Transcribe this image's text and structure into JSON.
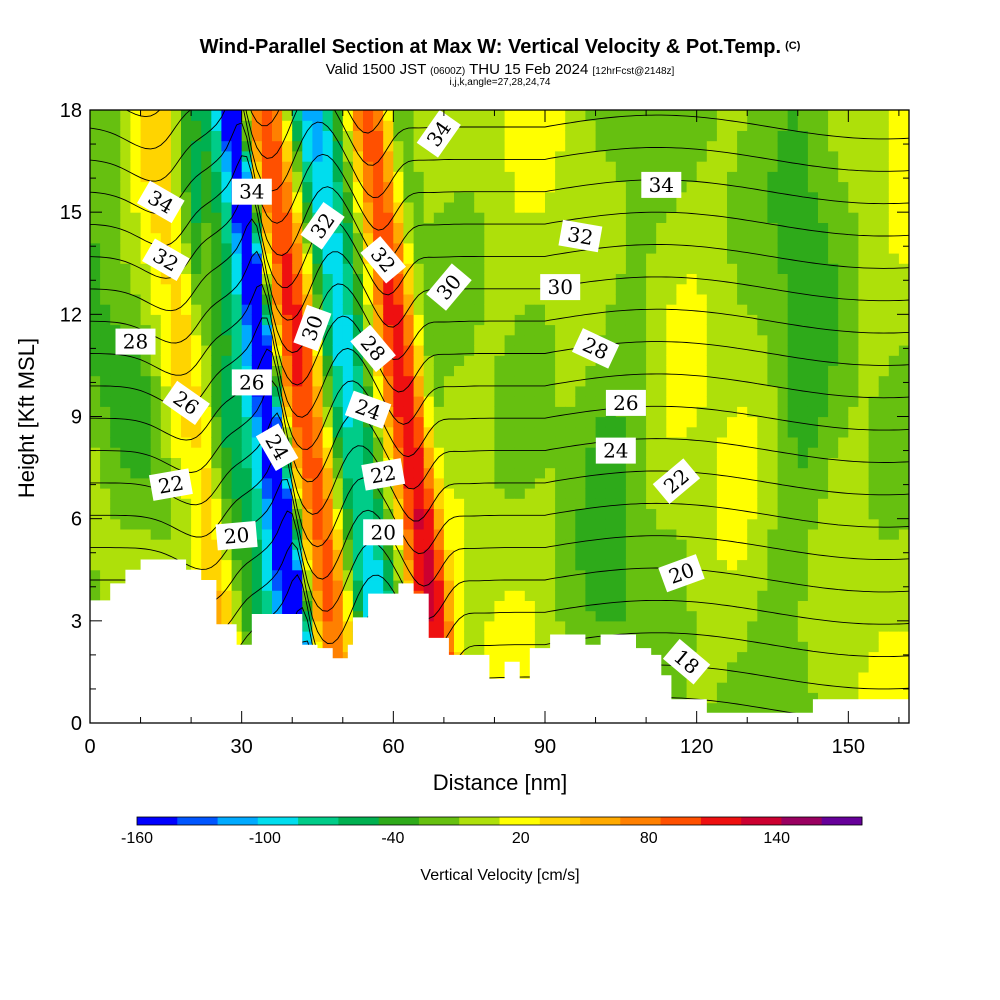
{
  "header": {
    "title": "Wind-Parallel Section at Max W: Vertical Velocity & Pot.Temp.",
    "copyright": "(C)",
    "valid_prefix": "Valid 1500 JST",
    "valid_zulu": "(0600Z)",
    "valid_date": "THU 15 Feb 2024",
    "forecast": "[12hrFcst@2148z]",
    "ijk": "i,j,k,angle=27,28,24,74"
  },
  "chart_data": {
    "type": "heatmap",
    "xlabel": "Distance [nm]",
    "ylabel": "Height [Kft MSL]",
    "xlim": [
      0,
      162
    ],
    "ylim": [
      0,
      18
    ],
    "x_ticks": [
      "0",
      "30",
      "60",
      "90",
      "120",
      "150"
    ],
    "y_ticks": [
      "0",
      "3",
      "6",
      "9",
      "12",
      "15",
      "18"
    ],
    "x_tick_values": [
      0,
      30,
      60,
      90,
      120,
      150
    ],
    "y_tick_values": [
      0,
      3,
      6,
      9,
      12,
      15,
      18
    ],
    "terrain_profile": [
      [
        0,
        3.6
      ],
      [
        4,
        3.6
      ],
      [
        4,
        4.1
      ],
      [
        7,
        4.1
      ],
      [
        7,
        4.5
      ],
      [
        10,
        4.5
      ],
      [
        10,
        4.8
      ],
      [
        19,
        4.8
      ],
      [
        19,
        4.5
      ],
      [
        22,
        4.5
      ],
      [
        22,
        4.2
      ],
      [
        25,
        4.2
      ],
      [
        25,
        2.9
      ],
      [
        29,
        2.9
      ],
      [
        29,
        2.3
      ],
      [
        32,
        2.3
      ],
      [
        32,
        3.2
      ],
      [
        42,
        3.2
      ],
      [
        42,
        2.3
      ],
      [
        45,
        2.3
      ],
      [
        45,
        2.2
      ],
      [
        48,
        2.2
      ],
      [
        48,
        1.9
      ],
      [
        51,
        1.9
      ],
      [
        51,
        2.3
      ],
      [
        52,
        2.3
      ],
      [
        52,
        3.1
      ],
      [
        55,
        3.1
      ],
      [
        55,
        3.8
      ],
      [
        61,
        3.8
      ],
      [
        61,
        4.1
      ],
      [
        64,
        4.1
      ],
      [
        64,
        3.8
      ],
      [
        67,
        3.8
      ],
      [
        67,
        2.5
      ],
      [
        71,
        2.5
      ],
      [
        71,
        2.0
      ],
      [
        79,
        2.0
      ],
      [
        79,
        1.3
      ],
      [
        82,
        1.3
      ],
      [
        82,
        1.8
      ],
      [
        85,
        1.8
      ],
      [
        85,
        1.3
      ],
      [
        87,
        1.3
      ],
      [
        87,
        2.2
      ],
      [
        91,
        2.2
      ],
      [
        91,
        2.6
      ],
      [
        98,
        2.6
      ],
      [
        98,
        2.3
      ],
      [
        101,
        2.3
      ],
      [
        101,
        2.6
      ],
      [
        108,
        2.6
      ],
      [
        108,
        2.2
      ],
      [
        111,
        2.2
      ],
      [
        111,
        2.0
      ],
      [
        113,
        2.0
      ],
      [
        113,
        1.4
      ],
      [
        115,
        1.4
      ],
      [
        115,
        0.7
      ],
      [
        122,
        0.7
      ],
      [
        122,
        0.3
      ],
      [
        126,
        0.3
      ],
      [
        126,
        0.3
      ],
      [
        143,
        0.3
      ],
      [
        143,
        0.7
      ],
      [
        162,
        0.7
      ]
    ],
    "velocity_bands": [
      {
        "x": 24,
        "w": 12,
        "value": 60
      },
      {
        "x": 30,
        "w": 6,
        "value": -40
      },
      {
        "x": 38,
        "w": 10,
        "value": -110
      },
      {
        "x": 40,
        "w": 4,
        "value": -150
      },
      {
        "x": 47,
        "w": 11,
        "value": 110
      },
      {
        "x": 53,
        "w": 7,
        "value": -40
      },
      {
        "x": 57,
        "w": 11,
        "value": -100
      },
      {
        "x": 60,
        "w": 5,
        "value": 10
      },
      {
        "x": 67,
        "w": 10,
        "value": 125
      },
      {
        "x": 72,
        "w": 6,
        "value": -35
      },
      {
        "x": 104,
        "w": 16,
        "value": -25
      },
      {
        "x": 140,
        "w": 14,
        "value": -30
      }
    ],
    "isentropes": {
      "levels": [
        18,
        20,
        22,
        24,
        26,
        28,
        30,
        32,
        34
      ],
      "labels": [
        {
          "text": "34",
          "x": 14,
          "y": 15.3,
          "angle": 30
        },
        {
          "text": "34",
          "x": 32,
          "y": 15.6,
          "angle": 0
        },
        {
          "text": "34",
          "x": 69,
          "y": 17.3,
          "angle": -55
        },
        {
          "text": "34",
          "x": 113,
          "y": 15.8,
          "angle": 0
        },
        {
          "text": "32",
          "x": 15,
          "y": 13.6,
          "angle": 30
        },
        {
          "text": "32",
          "x": 46,
          "y": 14.6,
          "angle": -55
        },
        {
          "text": "32",
          "x": 58,
          "y": 13.6,
          "angle": 50
        },
        {
          "text": "32",
          "x": 97,
          "y": 14.3,
          "angle": 10
        },
        {
          "text": "30",
          "x": 44,
          "y": 11.6,
          "angle": -70
        },
        {
          "text": "30",
          "x": 71,
          "y": 12.8,
          "angle": -50
        },
        {
          "text": "30",
          "x": 93,
          "y": 12.8,
          "angle": 0
        },
        {
          "text": "28",
          "x": 9,
          "y": 11.2,
          "angle": 0
        },
        {
          "text": "28",
          "x": 56,
          "y": 11.0,
          "angle": 50
        },
        {
          "text": "28",
          "x": 100,
          "y": 11.0,
          "angle": 25
        },
        {
          "text": "26",
          "x": 19,
          "y": 9.4,
          "angle": 35
        },
        {
          "text": "26",
          "x": 32,
          "y": 10.0,
          "angle": 0
        },
        {
          "text": "26",
          "x": 106,
          "y": 9.4,
          "angle": 0
        },
        {
          "text": "24",
          "x": 37,
          "y": 8.1,
          "angle": 60
        },
        {
          "text": "24",
          "x": 55,
          "y": 9.2,
          "angle": 20
        },
        {
          "text": "24",
          "x": 104,
          "y": 8.0,
          "angle": 0
        },
        {
          "text": "22",
          "x": 16,
          "y": 7.0,
          "angle": -10
        },
        {
          "text": "22",
          "x": 58,
          "y": 7.3,
          "angle": -10
        },
        {
          "text": "22",
          "x": 116,
          "y": 7.1,
          "angle": -40
        },
        {
          "text": "20",
          "x": 29,
          "y": 5.5,
          "angle": -5
        },
        {
          "text": "20",
          "x": 58,
          "y": 5.6,
          "angle": 0
        },
        {
          "text": "20",
          "x": 117,
          "y": 4.4,
          "angle": -20
        },
        {
          "text": "18",
          "x": 118,
          "y": 1.8,
          "angle": 40
        }
      ]
    }
  },
  "colorbar": {
    "title": "Vertical Velocity [cm/s]",
    "tick_labels": [
      "-160",
      "-100",
      "-40",
      "20",
      "80",
      "140"
    ],
    "tick_values": [
      -160,
      -100,
      -40,
      20,
      80,
      140
    ],
    "bounds": [
      -160,
      180
    ],
    "step": 20,
    "colors": [
      "#0000ff",
      "#0055ff",
      "#00aaff",
      "#00ddee",
      "#00cc88",
      "#00b050",
      "#2eaa1a",
      "#66c010",
      "#aee00a",
      "#ffff00",
      "#ffd400",
      "#ffaa00",
      "#ff8000",
      "#ff5000",
      "#ee1010",
      "#cc0030",
      "#990060",
      "#660099"
    ]
  }
}
